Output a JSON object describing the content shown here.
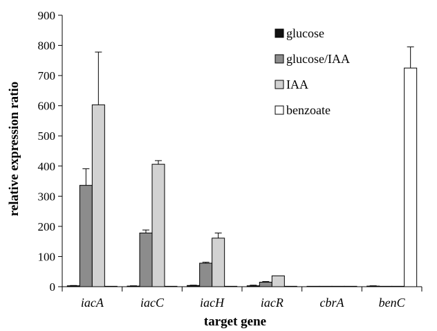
{
  "chart_data": {
    "type": "bar",
    "xlabel": "target gene",
    "ylabel": "relative expression ratio",
    "ylim": [
      0,
      900
    ],
    "yticks": [
      0,
      100,
      200,
      300,
      400,
      500,
      600,
      700,
      800,
      900
    ],
    "categories": [
      "iacA",
      "iacC",
      "iacH",
      "iacR",
      "cbrA",
      "benC"
    ],
    "series": [
      {
        "name": "glucose",
        "color": "#111111",
        "values": [
          3,
          2,
          4,
          3,
          1,
          2
        ],
        "errors": [
          1,
          1,
          1,
          2,
          0,
          1
        ]
      },
      {
        "name": "glucose/IAA",
        "color": "#8c8c8c",
        "values": [
          336,
          178,
          78,
          15,
          1,
          1
        ],
        "errors": [
          55,
          10,
          3,
          2,
          0,
          0
        ]
      },
      {
        "name": "IAA",
        "color": "#d2d2d2",
        "values": [
          603,
          406,
          161,
          36,
          1,
          1
        ],
        "errors": [
          175,
          12,
          17,
          0,
          0,
          0
        ]
      },
      {
        "name": "benzoate",
        "color": "#ffffff",
        "values": [
          1,
          1,
          1,
          1,
          1,
          725
        ],
        "errors": [
          0,
          0,
          0,
          0,
          0,
          70
        ]
      }
    ],
    "legend_position": "top-right",
    "grid": false
  }
}
